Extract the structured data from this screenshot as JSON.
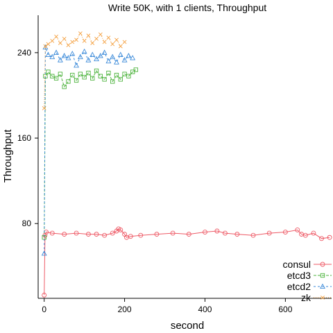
{
  "chart_data": {
    "type": "line",
    "title": "Write 50K, with 1 clients, Throughput",
    "xlabel": "second",
    "ylabel": "Throughput",
    "xlim": [
      -15,
      715
    ],
    "ylim": [
      10,
      275
    ],
    "xticks": [
      0,
      200,
      400,
      600
    ],
    "yticks": [
      80,
      160,
      240
    ],
    "grid": false,
    "legend_position": "bottom-right",
    "series": [
      {
        "name": "consul",
        "color": "#ee5a66",
        "marker": "circle",
        "x": [
          0,
          2,
          5,
          20,
          50,
          80,
          110,
          130,
          150,
          170,
          180,
          185,
          190,
          200,
          205,
          215,
          240,
          280,
          320,
          360,
          400,
          430,
          450,
          480,
          520,
          560,
          600,
          630,
          640,
          650,
          670,
          690,
          710
        ],
        "y": [
          13,
          69,
          72,
          71,
          70,
          71,
          70,
          70,
          69,
          71,
          73,
          75,
          74,
          70,
          67,
          68,
          69,
          70,
          71,
          70,
          72,
          73,
          71,
          70,
          69,
          71,
          72,
          74,
          70,
          69,
          71,
          66,
          67
        ]
      },
      {
        "name": "etcd3",
        "color": "#4db33d",
        "marker": "square",
        "x": [
          0,
          3,
          10,
          20,
          30,
          40,
          50,
          60,
          70,
          80,
          90,
          100,
          110,
          120,
          130,
          140,
          150,
          160,
          170,
          180,
          190,
          200,
          210,
          220,
          228
        ],
        "y": [
          67,
          218,
          222,
          218,
          216,
          220,
          208,
          213,
          219,
          214,
          220,
          217,
          221,
          216,
          223,
          218,
          215,
          221,
          213,
          219,
          215,
          220,
          218,
          222,
          224
        ]
      },
      {
        "name": "etcd2",
        "color": "#3b8ad9",
        "marker": "triangle",
        "x": [
          0,
          3,
          10,
          20,
          30,
          40,
          50,
          60,
          70,
          80,
          90,
          100,
          110,
          120,
          130,
          140,
          150,
          160,
          170,
          180,
          190,
          200,
          210,
          220
        ],
        "y": [
          52,
          245,
          238,
          236,
          240,
          233,
          237,
          235,
          239,
          228,
          236,
          241,
          233,
          238,
          234,
          237,
          240,
          232,
          236,
          231,
          238,
          233,
          237,
          235
        ]
      },
      {
        "name": "zk",
        "color": "#f4a040",
        "marker": "x",
        "x": [
          0,
          3,
          10,
          20,
          30,
          40,
          50,
          60,
          70,
          80,
          90,
          100,
          110,
          120,
          130,
          140,
          150,
          160,
          170,
          180,
          190,
          200
        ],
        "y": [
          188,
          246,
          248,
          251,
          255,
          249,
          253,
          247,
          250,
          252,
          258,
          251,
          256,
          249,
          253,
          257,
          250,
          254,
          248,
          252,
          246,
          250
        ]
      }
    ]
  }
}
